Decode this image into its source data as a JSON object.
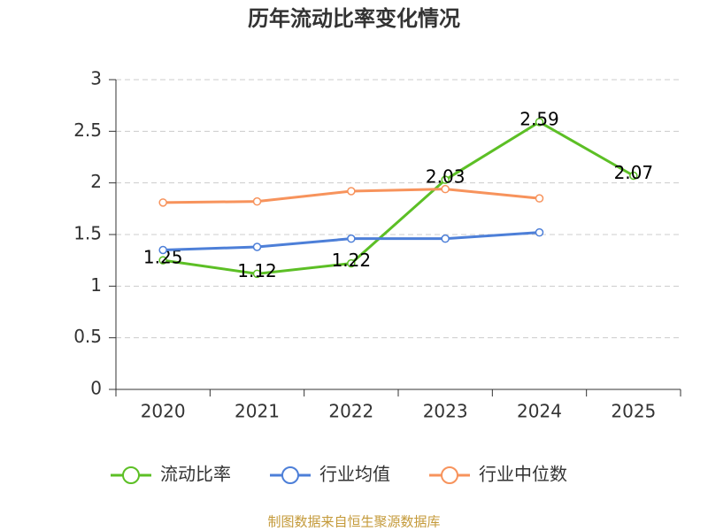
{
  "chart_data": {
    "type": "line",
    "title": "历年流动比率变化情况",
    "categories": [
      "2020",
      "2021",
      "2022",
      "2023",
      "2024",
      "2025"
    ],
    "series": [
      {
        "name": "流动比率",
        "color": "#5cbf25",
        "values": [
          1.25,
          1.12,
          1.22,
          2.03,
          2.59,
          2.07
        ],
        "data_labels": true
      },
      {
        "name": "行业均值",
        "color": "#4d7fd8",
        "values": [
          1.35,
          1.38,
          1.46,
          1.46,
          1.52,
          null
        ]
      },
      {
        "name": "行业中位数",
        "color": "#f7935c",
        "values": [
          1.81,
          1.82,
          1.92,
          1.94,
          1.85,
          null
        ]
      }
    ],
    "ylim": [
      0,
      3
    ],
    "yticks": [
      0,
      0.5,
      1,
      1.5,
      2,
      2.5,
      3
    ],
    "grid": true,
    "legend": "bottom",
    "source": "制图数据来自恒生聚源数据库"
  }
}
